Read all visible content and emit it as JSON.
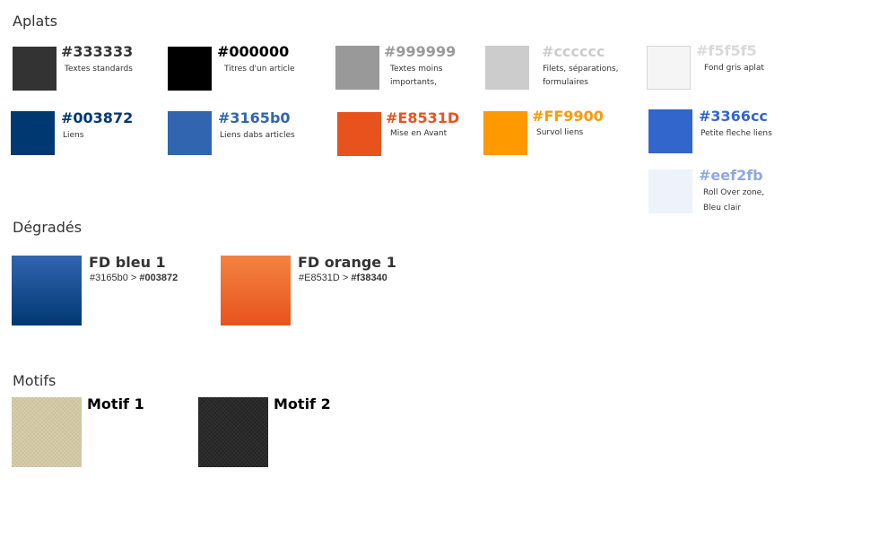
{
  "sections": {
    "flat": "Aplats",
    "gradients": "Dégradés",
    "patterns": "Motifs"
  },
  "flat_colors": [
    {
      "hex": "#333333",
      "color": "#333333",
      "desc": "Textes standards"
    },
    {
      "hex": "#000000",
      "color": "#000000",
      "desc": "Titres d'un article"
    },
    {
      "hex": "#999999",
      "color": "#999999",
      "desc": "Textes moins\nimportants,"
    },
    {
      "hex": "#cccccc",
      "color": "#cccccc",
      "desc": "Filets, séparations,\nformulaires"
    },
    {
      "hex": "#f5f5f5",
      "color": "#f5f5f5",
      "desc": "Fond gris aplat"
    },
    {
      "hex": "#003872",
      "color": "#003872",
      "desc": "Liens"
    },
    {
      "hex": "#3165b0",
      "color": "#3165b0",
      "desc": "Liens dabs articles"
    },
    {
      "hex": "#E8531D",
      "color": "#E8531D",
      "desc": "Mise en Avant"
    },
    {
      "hex": "#FF9900",
      "color": "#FF9900",
      "desc": "Survol liens"
    },
    {
      "hex": "#3366cc",
      "color": "#3366cc",
      "desc": "Petite fleche liens"
    },
    {
      "hex": "#eef2fb",
      "color": "#eef2fb",
      "desc": "Roll Over zone,\nBleu clair"
    }
  ],
  "gradients": [
    {
      "name": "FD bleu 1",
      "from": "#3165b0",
      "sep": " > ",
      "to": "#003872"
    },
    {
      "name": "FD orange 1",
      "from": "#E8531D",
      "sep": " > ",
      "to": "#f38340"
    }
  ],
  "patterns": [
    {
      "name": "Motif 1",
      "color": "#d3c8a2"
    },
    {
      "name": "Motif 2",
      "color": "#2a2a2a"
    }
  ]
}
